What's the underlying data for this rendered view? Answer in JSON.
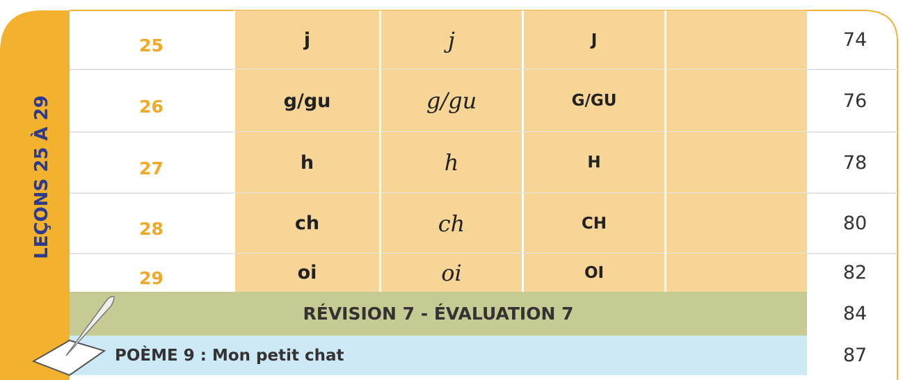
{
  "side_label": "LEÇONS 25 À 29",
  "rows": [
    {
      "lesson": "25",
      "print": "j",
      "cursive": "j",
      "capital": "J",
      "page": "74"
    },
    {
      "lesson": "26",
      "print": "g/gu",
      "cursive": "g/gu",
      "capital": "G/GU",
      "page": "76"
    },
    {
      "lesson": "27",
      "print": "h",
      "cursive": "h",
      "capital": "H",
      "page": "78"
    },
    {
      "lesson": "28",
      "print": "ch",
      "cursive": "ch",
      "capital": "CH",
      "page": "80"
    },
    {
      "lesson": "29",
      "print": "oi",
      "cursive": "oi",
      "capital": "OI",
      "page": "82"
    }
  ],
  "revision": {
    "label": "RÉVISION 7 - ÉVALUATION 7",
    "page": "84"
  },
  "poem": {
    "label": "POÈME 9 : Mon petit chat",
    "page": "87"
  }
}
